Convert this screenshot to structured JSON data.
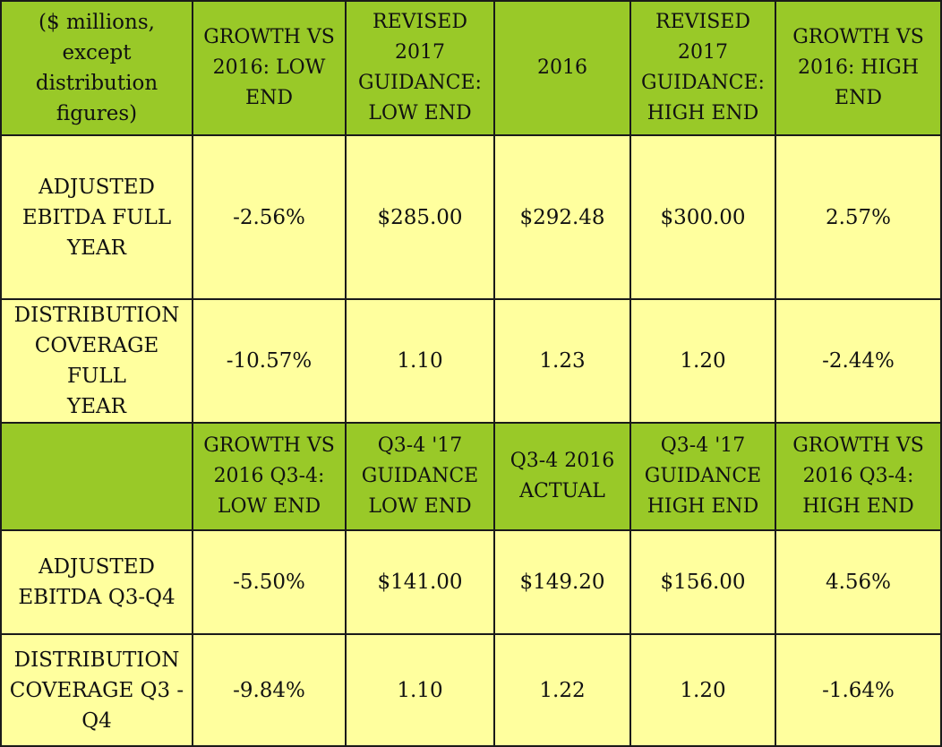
{
  "table": {
    "header1": {
      "row_label": "($ millions,\nexcept\ndistribution\nfigures)",
      "growth_low": "GROWTH VS\n2016: LOW\nEND",
      "guidance_low": "REVISED\n2017\nGUIDANCE:\nLOW END",
      "actual": "2016",
      "guidance_high": "REVISED\n2017\nGUIDANCE:\nHIGH  END",
      "growth_high": "GROWTH VS\n2016: HIGH\nEND"
    },
    "ebitda_full_year": {
      "label": "ADJUSTED\nEBITDA FULL\nYEAR",
      "growth_low": "-2.56%",
      "guidance_low": "$285.00",
      "actual": "$292.48",
      "guidance_high": "$300.00",
      "growth_high": "2.57%"
    },
    "coverage_full_year": {
      "label": "DISTRIBUTION\nCOVERAGE FULL\nYEAR",
      "growth_low": "-10.57%",
      "guidance_low": "1.10",
      "actual": "1.23",
      "guidance_high": "1.20",
      "growth_high": "-2.44%"
    },
    "header2": {
      "row_label": "",
      "growth_low": "GROWTH VS\n2016 Q3-4:\nLOW END",
      "guidance_low": "Q3-4 '17\nGUIDANCE\nLOW END",
      "actual": "Q3-4 2016\nACTUAL",
      "guidance_high": "Q3-4 '17\nGUIDANCE\nHIGH END",
      "growth_high": "GROWTH VS\n2016 Q3-4:\nHIGH END"
    },
    "ebitda_q3_q4": {
      "label": "ADJUSTED\nEBITDA Q3-Q4",
      "growth_low": "-5.50%",
      "guidance_low": "$141.00",
      "actual": "$149.20",
      "guidance_high": "$156.00",
      "growth_high": "4.56%"
    },
    "coverage_q3_q4": {
      "label": "DISTRIBUTION\nCOVERAGE Q3 -\nQ4",
      "growth_low": "-9.84%",
      "guidance_low": "1.10",
      "actual": "1.22",
      "guidance_high": "1.20",
      "growth_high": "-1.64%"
    }
  },
  "colors": {
    "header_bg": "#99c928",
    "body_bg": "#ffff9e",
    "border": "#1a1a1a"
  }
}
